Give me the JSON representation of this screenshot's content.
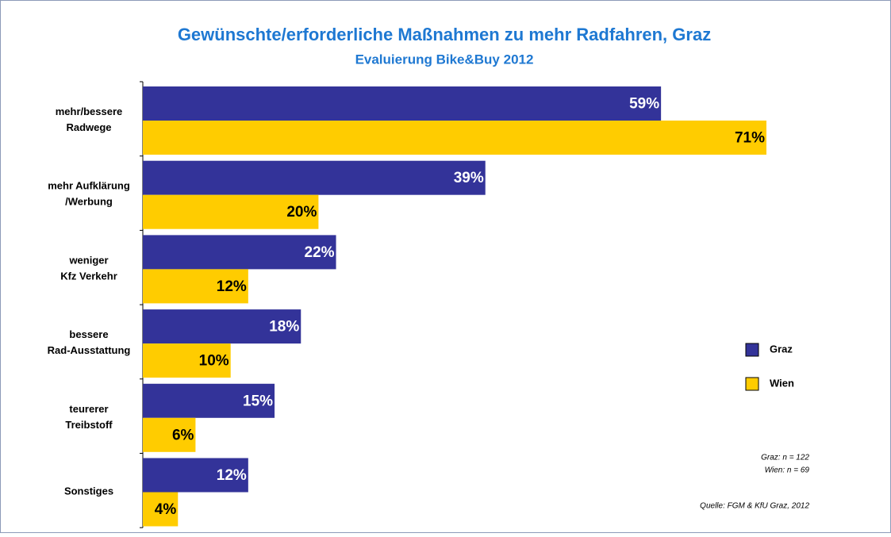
{
  "chart_data": {
    "type": "bar",
    "orientation": "horizontal",
    "title": "Gewünschte/erforderliche Maßnahmen zu mehr Radfahren, Graz",
    "subtitle": "Evaluierung Bike&Buy 2012",
    "categories": [
      [
        "mehr/bessere",
        "Radwege"
      ],
      [
        "mehr Aufklärung",
        "/Werbung"
      ],
      [
        "weniger",
        "Kfz Verkehr"
      ],
      [
        "bessere",
        "Rad-Ausstattung"
      ],
      [
        "teurerer",
        "Treibstoff"
      ],
      [
        "Sonstiges"
      ]
    ],
    "series": [
      {
        "name": "Graz",
        "color": "#333399",
        "label_color": "#ffffff",
        "values": [
          59,
          39,
          22,
          18,
          15,
          12
        ],
        "value_labels": [
          "59%",
          "39%",
          "22%",
          "18%",
          "15%",
          "12%"
        ]
      },
      {
        "name": "Wien",
        "color": "#ffcc00",
        "label_color": "#000000",
        "values": [
          71,
          20,
          12,
          10,
          6,
          4
        ],
        "value_labels": [
          "71%",
          "20%",
          "12%",
          "10%",
          "6%",
          "4%"
        ]
      }
    ],
    "annotations": [
      "Graz: n = 122",
      "Wien: n = 69",
      "Quelle: FGM & KfU Graz, 2012"
    ],
    "legend": "right"
  }
}
